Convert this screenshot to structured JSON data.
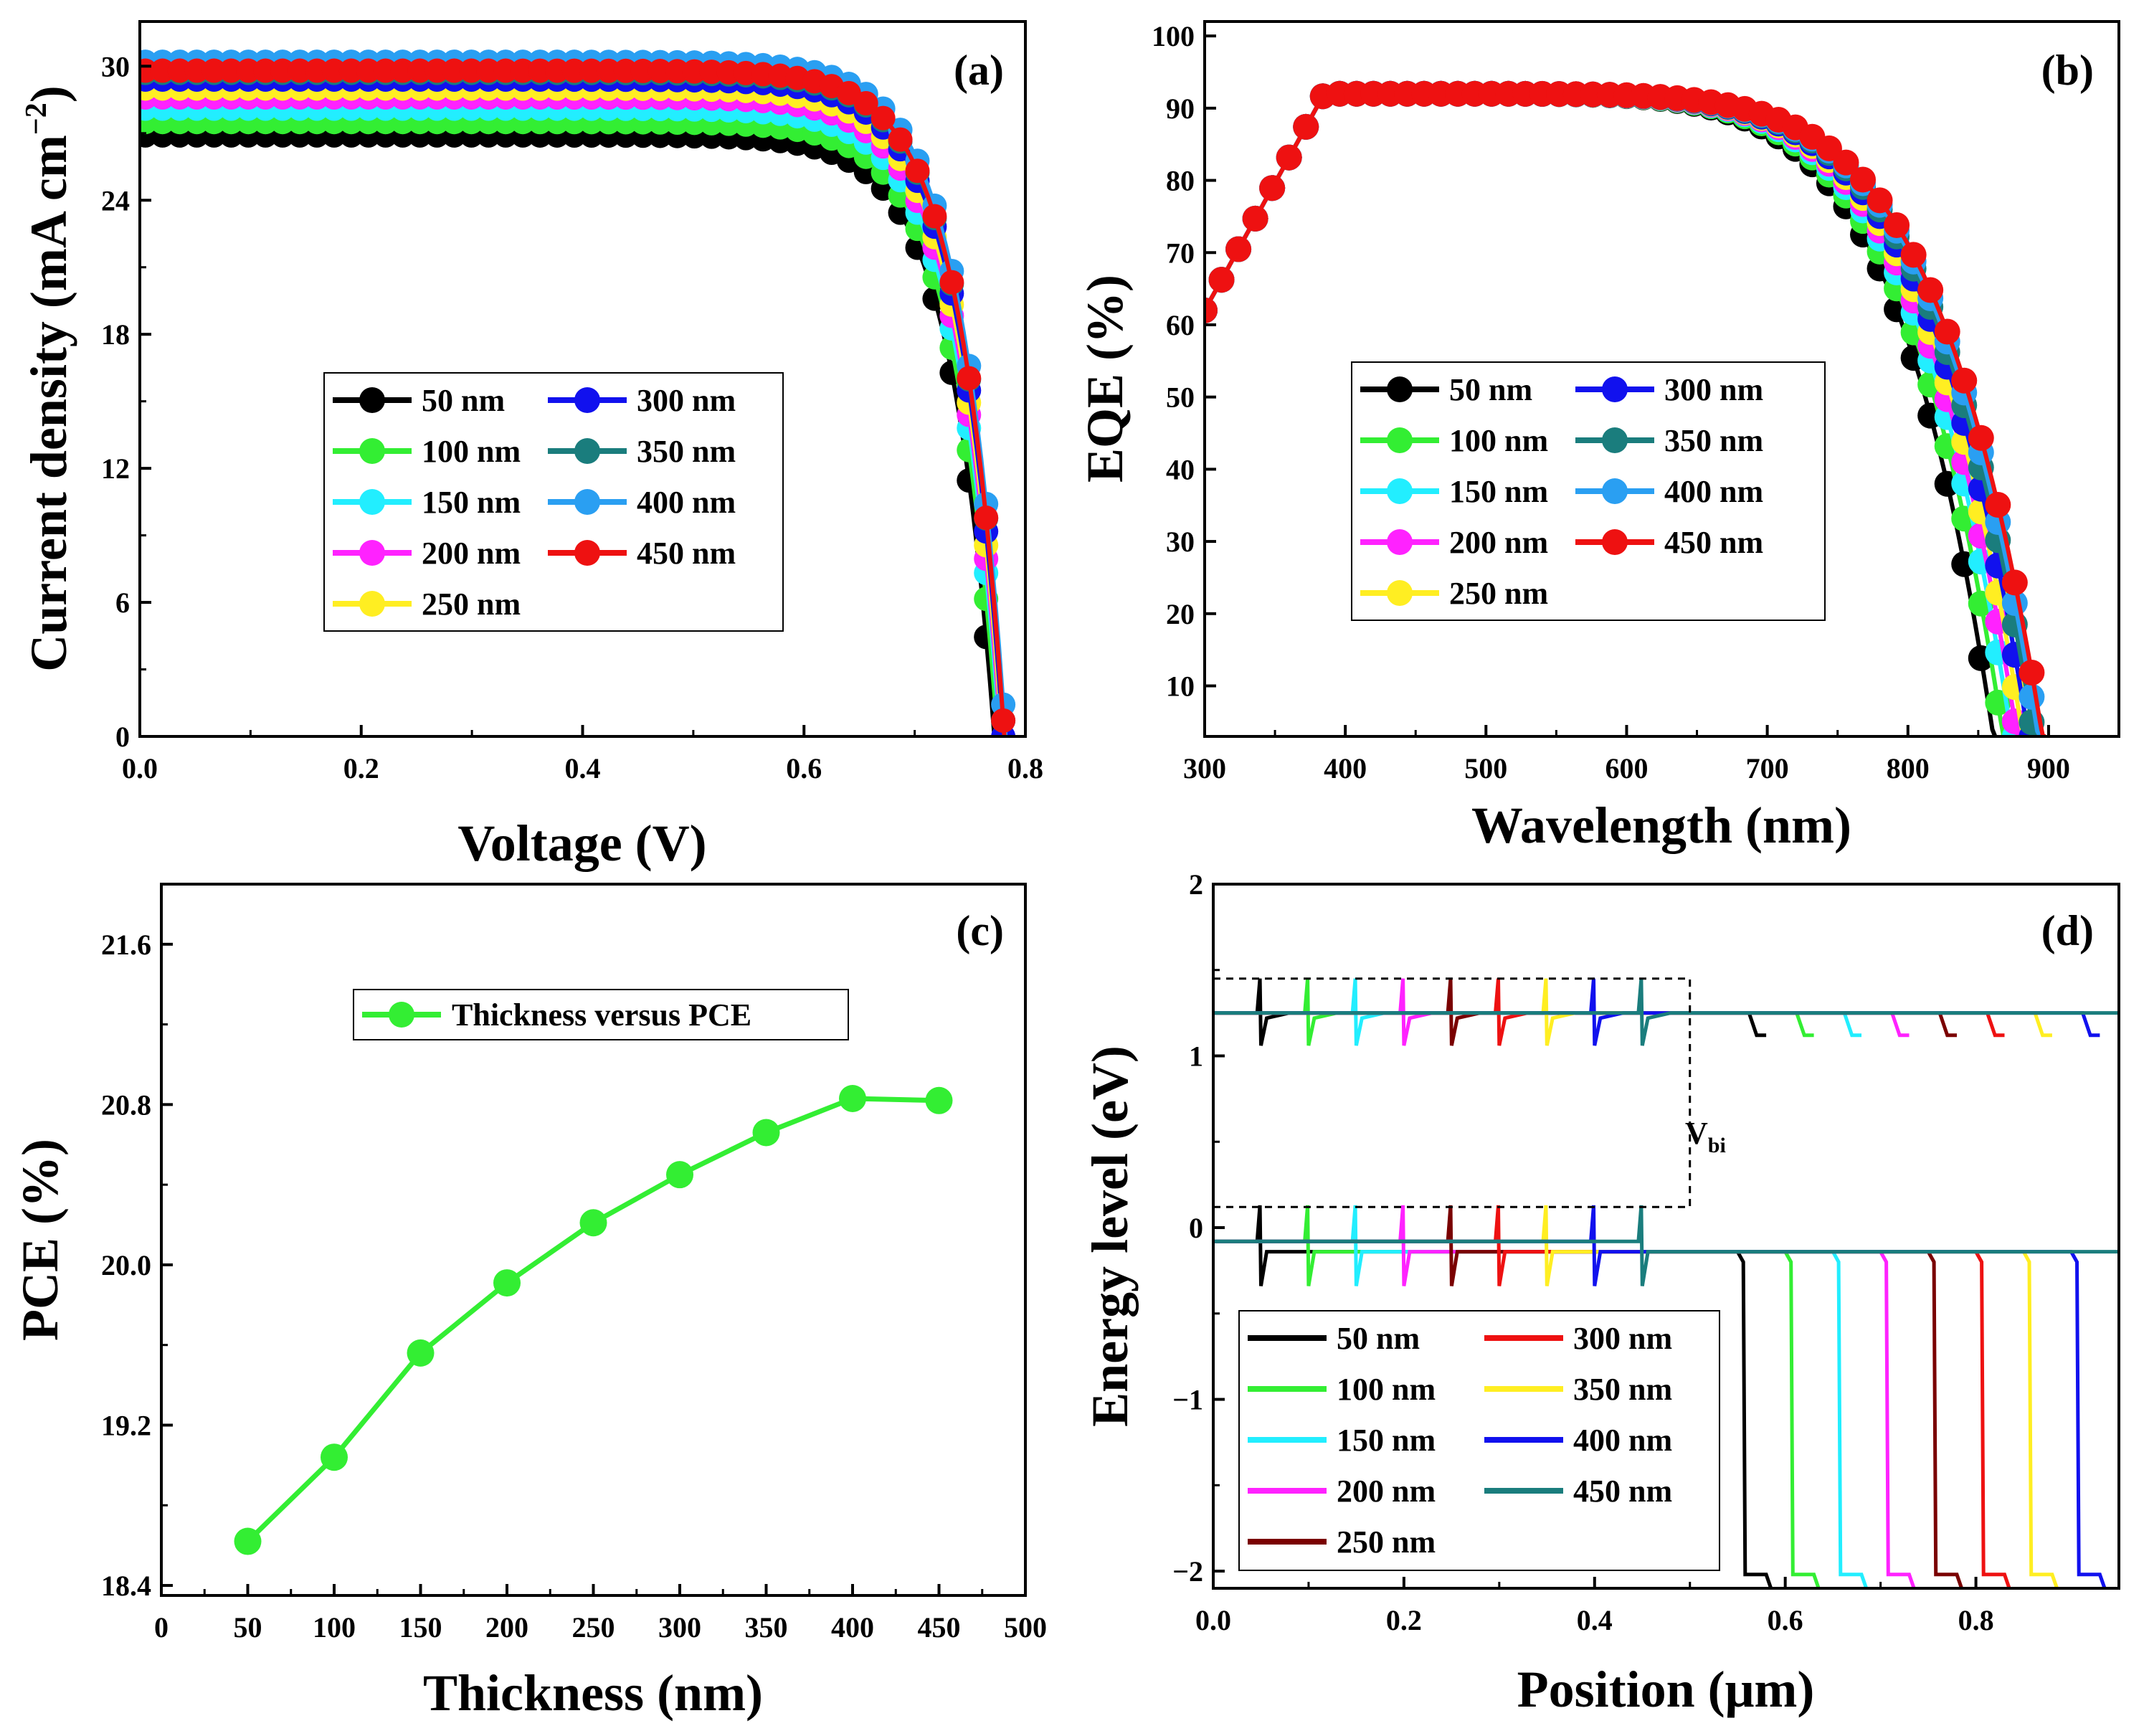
{
  "chart_data": [
    {
      "id": "a",
      "type": "line",
      "panel_label": "(a)",
      "xlabel": "Voltage (V)",
      "ylabel": "Current density (mA cm",
      "ylabel_sup": "−2",
      "ylabel_end": ")",
      "xlim": [
        0.0,
        0.8
      ],
      "ylim": [
        0,
        32
      ],
      "xticks": [
        0.0,
        0.2,
        0.4,
        0.6,
        0.8
      ],
      "xtick_labels": [
        "0.0",
        "0.2",
        "0.4",
        "0.6",
        "0.8"
      ],
      "yticks": [
        0,
        6,
        12,
        18,
        24,
        30
      ],
      "ytick_labels": [
        "0",
        "6",
        "12",
        "18",
        "24",
        "30"
      ],
      "legend_location": "center-left",
      "series": [
        {
          "name": "50 nm",
          "color": "#000000",
          "jsc": 26.9,
          "voc": 0.772
        },
        {
          "name": "100 nm",
          "color": "#33ee33",
          "jsc": 27.5,
          "voc": 0.775
        },
        {
          "name": "150 nm",
          "color": "#22eeff",
          "jsc": 28.1,
          "voc": 0.777
        },
        {
          "name": "200 nm",
          "color": "#ff22ff",
          "jsc": 28.6,
          "voc": 0.778
        },
        {
          "name": "250 nm",
          "color": "#ffee22",
          "jsc": 29.0,
          "voc": 0.779
        },
        {
          "name": "300 nm",
          "color": "#1111ee",
          "jsc": 29.4,
          "voc": 0.78
        },
        {
          "name": "350 nm",
          "color": "#1a7d7d",
          "jsc": 29.7,
          "voc": 0.781
        },
        {
          "name": "400 nm",
          "color": "#2a9ff2",
          "jsc": 30.2,
          "voc": 0.782
        },
        {
          "name": "450 nm",
          "color": "#ee1111",
          "jsc": 29.8,
          "voc": 0.781
        }
      ]
    },
    {
      "id": "b",
      "type": "line",
      "panel_label": "(b)",
      "xlabel": "Wavelength (nm)",
      "ylabel": "EQE (%)",
      "xlim": [
        300,
        950
      ],
      "ylim": [
        3,
        102
      ],
      "xticks": [
        300,
        400,
        500,
        600,
        700,
        800,
        900
      ],
      "xtick_labels": [
        "300",
        "400",
        "500",
        "600",
        "700",
        "800",
        "900"
      ],
      "yticks": [
        10,
        20,
        30,
        40,
        50,
        60,
        70,
        80,
        90,
        100
      ],
      "ytick_labels": [
        "10",
        "20",
        "30",
        "40",
        "50",
        "60",
        "70",
        "80",
        "90",
        "100"
      ],
      "legend_location": "center-left",
      "series": [
        {
          "name": "50 nm",
          "color": "#000000",
          "cutoff": 863
        },
        {
          "name": "100 nm",
          "color": "#33ee33",
          "cutoff": 870
        },
        {
          "name": "150 nm",
          "color": "#22eeff",
          "cutoff": 876
        },
        {
          "name": "200 nm",
          "color": "#ff22ff",
          "cutoff": 880
        },
        {
          "name": "250 nm",
          "color": "#ffee22",
          "cutoff": 884
        },
        {
          "name": "300 nm",
          "color": "#1111ee",
          "cutoff": 888
        },
        {
          "name": "350 nm",
          "color": "#1a7d7d",
          "cutoff": 892
        },
        {
          "name": "400 nm",
          "color": "#2a9ff2",
          "cutoff": 895
        },
        {
          "name": "450 nm",
          "color": "#ee1111",
          "cutoff": 898
        }
      ]
    },
    {
      "id": "c",
      "type": "line",
      "panel_label": "(c)",
      "xlabel": "Thickness (nm)",
      "ylabel": "PCE (%)",
      "xlim": [
        0,
        500
      ],
      "ylim": [
        18.35,
        21.9
      ],
      "xticks": [
        0,
        50,
        100,
        150,
        200,
        250,
        300,
        350,
        400,
        450,
        500
      ],
      "xtick_labels": [
        "0",
        "50",
        "100",
        "150",
        "200",
        "250",
        "300",
        "350",
        "400",
        "450",
        "500"
      ],
      "yticks": [
        18.4,
        19.2,
        20.0,
        20.8,
        21.6
      ],
      "ytick_labels": [
        "18.4",
        "19.2",
        "20.0",
        "20.8",
        "21.6"
      ],
      "legend_location": "top-center",
      "series": [
        {
          "name": "Thickness versus PCE",
          "color": "#33ee33",
          "x": [
            50,
            100,
            150,
            200,
            250,
            300,
            350,
            400,
            450
          ],
          "y": [
            18.62,
            19.04,
            19.56,
            19.91,
            20.21,
            20.45,
            20.66,
            20.83,
            20.82
          ]
        }
      ]
    },
    {
      "id": "d",
      "type": "line",
      "panel_label": "(d)",
      "xlabel": "Position (μm)",
      "ylabel": "Energy level (eV)",
      "annotation": "V",
      "annotation_sub": "bi",
      "xlim": [
        0.0,
        0.95
      ],
      "ylim": [
        -2.1,
        2.0
      ],
      "xticks": [
        0.0,
        0.2,
        0.4,
        0.6,
        0.8
      ],
      "xtick_labels": [
        "0.0",
        "0.2",
        "0.4",
        "0.6",
        "0.8"
      ],
      "yticks": [
        -2,
        -1,
        0,
        1,
        2
      ],
      "ytick_labels": [
        "−2",
        "−1",
        "0",
        "1",
        "2"
      ],
      "legend_location": "bottom-left",
      "series": [
        {
          "name": "50 nm",
          "color": "#000000",
          "end": 0.55
        },
        {
          "name": "100 nm",
          "color": "#33ee33",
          "end": 0.6
        },
        {
          "name": "150 nm",
          "color": "#22eeff",
          "end": 0.65
        },
        {
          "name": "200 nm",
          "color": "#ff22ff",
          "end": 0.7
        },
        {
          "name": "250 nm",
          "color": "#7a0000",
          "end": 0.75
        },
        {
          "name": "300 nm",
          "color": "#ee1111",
          "end": 0.8
        },
        {
          "name": "350 nm",
          "color": "#ffee22",
          "end": 0.85
        },
        {
          "name": "400 nm",
          "color": "#1111ee",
          "end": 0.9
        },
        {
          "name": "450 nm",
          "color": "#1a7d7d",
          "end": 0.95
        }
      ]
    }
  ]
}
